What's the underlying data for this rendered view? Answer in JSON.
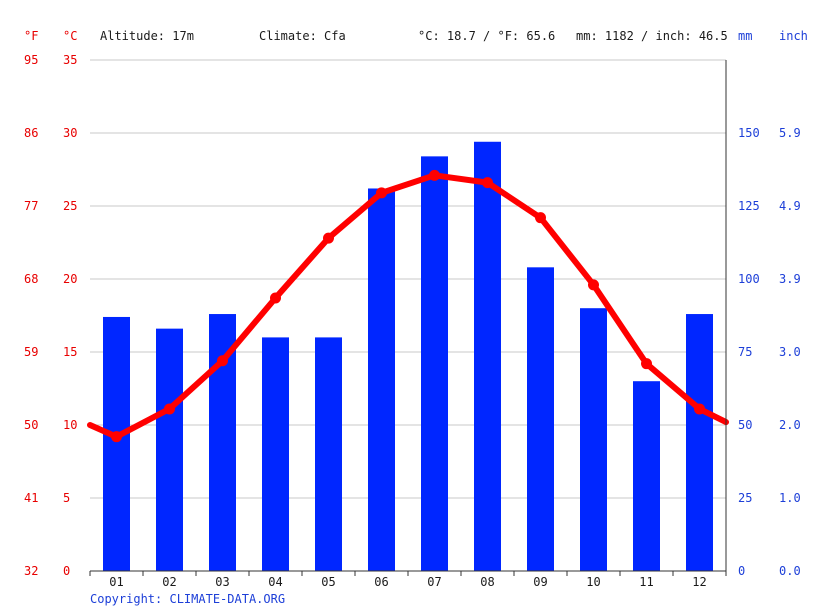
{
  "header": {
    "unit_f": "°F",
    "unit_c": "°C",
    "altitude": "Altitude: 17m",
    "climate": "Climate: Cfa",
    "avg_temp": "°C: 18.7 / °F: 65.6",
    "avg_precip": "mm: 1182 / inch: 46.5",
    "unit_mm": "mm",
    "unit_inch": "inch"
  },
  "copyright": "Copyright: CLIMATE-DATA.ORG",
  "colors": {
    "temperature": "#ff0000",
    "precipitation": "#0026ff",
    "axis_temp": "#e80000",
    "axis_precip": "#1d3fd8",
    "grid": "#c8c8c8"
  },
  "chart_data": {
    "type": "bar",
    "categories": [
      "01",
      "02",
      "03",
      "04",
      "05",
      "06",
      "07",
      "08",
      "09",
      "10",
      "11",
      "12"
    ],
    "series": [
      {
        "kind": "bar",
        "axis": "precip_mm",
        "values": [
          87,
          83,
          88,
          80,
          80,
          131,
          142,
          147,
          104,
          90,
          65,
          88
        ]
      },
      {
        "kind": "line",
        "axis": "temp_c",
        "values": [
          9.2,
          11.1,
          14.4,
          18.7,
          22.8,
          25.9,
          27.1,
          26.6,
          24.2,
          19.6,
          14.2,
          11.1
        ]
      }
    ],
    "line_edges_c": [
      10.0,
      10.2
    ],
    "axes": {
      "temp_c": {
        "ylim": [
          0,
          35
        ],
        "ticks": [
          "0",
          "5",
          "10",
          "15",
          "20",
          "25",
          "30",
          "35"
        ]
      },
      "temp_f": {
        "ticks": [
          "32",
          "41",
          "50",
          "59",
          "68",
          "77",
          "86",
          "95"
        ]
      },
      "precip_mm": {
        "ylim": [
          0,
          175
        ],
        "ticks": [
          "0",
          "25",
          "50",
          "75",
          "100",
          "125",
          "150"
        ]
      },
      "precip_inch": {
        "ticks": [
          "0.0",
          "1.0",
          "2.0",
          "3.0",
          "3.9",
          "4.9",
          "5.9"
        ]
      }
    },
    "grid": true
  }
}
